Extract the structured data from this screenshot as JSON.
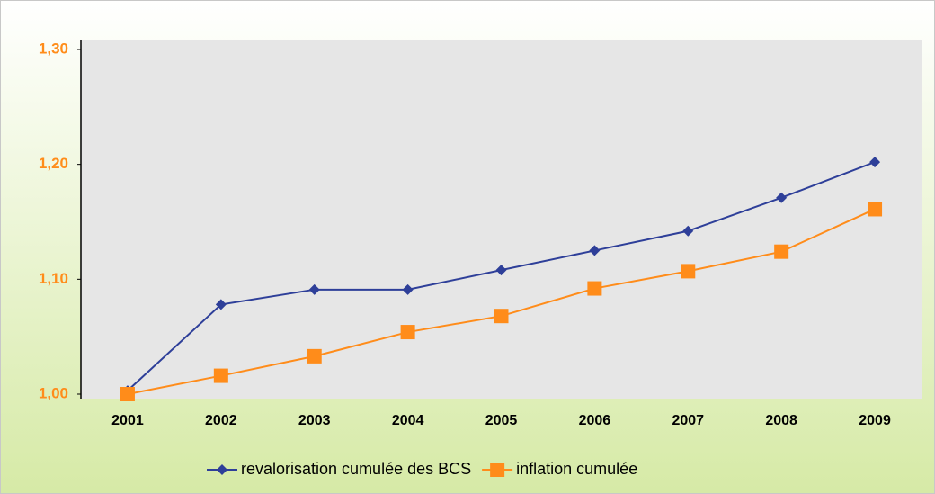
{
  "chart_data": {
    "type": "line",
    "categories": [
      "2001",
      "2002",
      "2003",
      "2004",
      "2005",
      "2006",
      "2007",
      "2008",
      "2009"
    ],
    "series": [
      {
        "name": "revalorisation cumulée des BCS",
        "color": "#2e3f99",
        "marker": "diamond",
        "values": [
          1.003,
          1.078,
          1.091,
          1.091,
          1.108,
          1.125,
          1.142,
          1.171,
          1.202
        ]
      },
      {
        "name": "inflation cumulée",
        "color": "#ff8c1a",
        "marker": "square",
        "values": [
          1.0,
          1.016,
          1.033,
          1.054,
          1.068,
          1.092,
          1.107,
          1.124,
          1.161
        ]
      }
    ],
    "ylim": [
      1.0,
      1.3
    ],
    "yticks": [
      {
        "value": 1.0,
        "label": "1,00"
      },
      {
        "value": 1.1,
        "label": "1,10"
      },
      {
        "value": 1.2,
        "label": "1,20"
      },
      {
        "value": 1.3,
        "label": "1,30"
      }
    ],
    "grid": false,
    "legend": "bottom"
  }
}
